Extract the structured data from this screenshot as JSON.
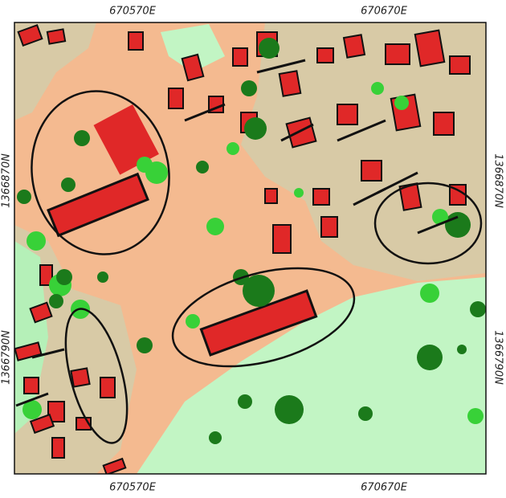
{
  "map": {
    "top_labels": [
      "670570E",
      "670670E"
    ],
    "bottom_labels": [
      "670570E",
      "670670E"
    ],
    "left_labels": [
      "1366870N",
      "1366790N"
    ],
    "right_labels": [
      "1366870N",
      "1366790N"
    ]
  }
}
